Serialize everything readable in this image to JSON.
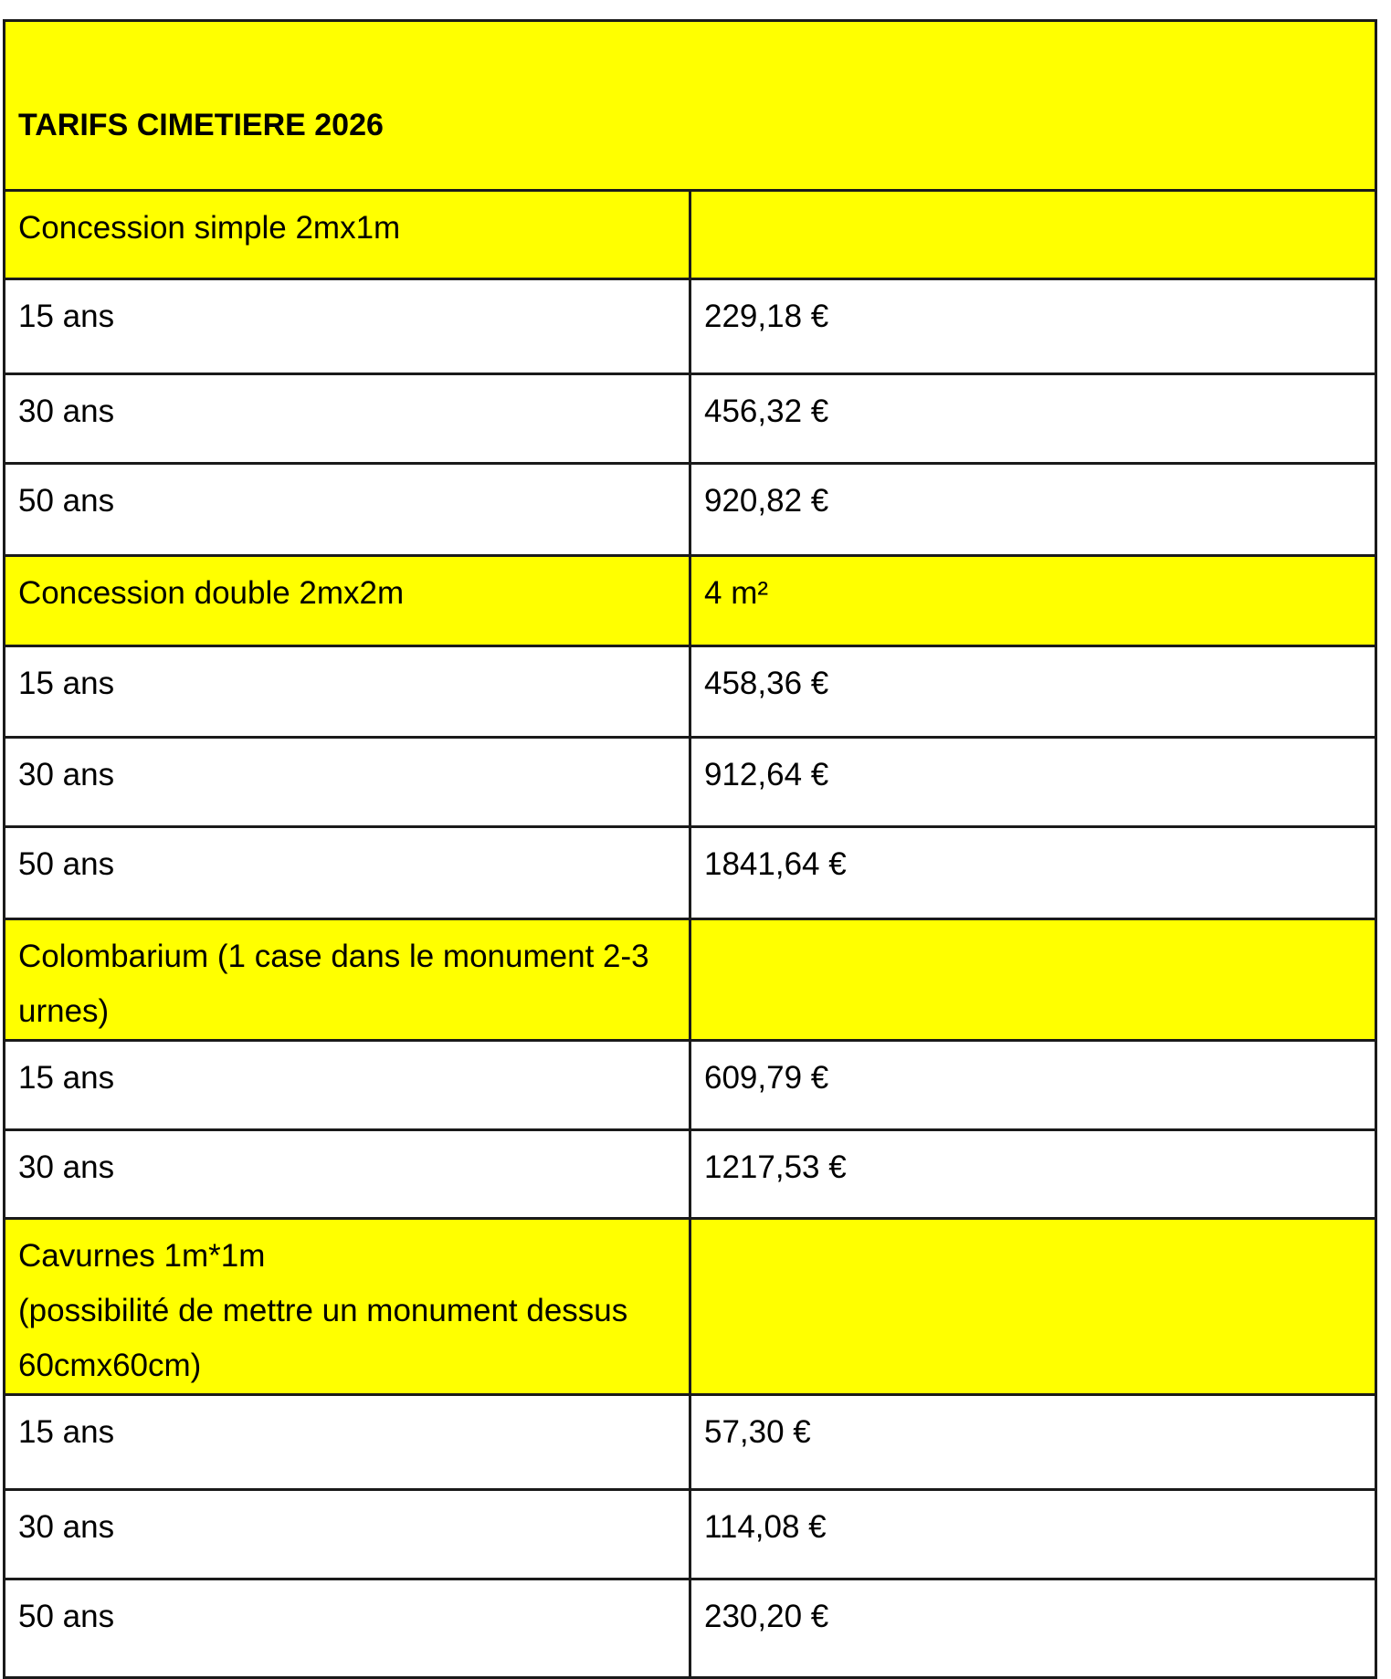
{
  "title": "TARIFS CIMETIERE 2026",
  "sections": [
    {
      "label": "Concession simple 2mx1m",
      "extra": "",
      "rows": [
        {
          "duration": "15 ans",
          "price": "229,18 €"
        },
        {
          "duration": "30 ans",
          "price": "456,32 €"
        },
        {
          "duration": "50 ans",
          "price": "920,82 €"
        }
      ]
    },
    {
      "label": "Concession double 2mx2m",
      "extra": "4 m²",
      "rows": [
        {
          "duration": "15 ans",
          "price": "458,36 €"
        },
        {
          "duration": "30 ans",
          "price": "912,64 €"
        },
        {
          "duration": "50 ans",
          "price": "1841,64 €"
        }
      ]
    },
    {
      "label": "Colombarium (1 case dans le monument 2-3 urnes)",
      "extra": "",
      "rows": [
        {
          "duration": "15 ans",
          "price": "609,79 €"
        },
        {
          "duration": "30 ans",
          "price": "1217,53 €"
        }
      ]
    },
    {
      "label": "Cavurnes 1m*1m\n(possibilité de mettre un monument dessus 60cmx60cm)",
      "extra": "",
      "rows": [
        {
          "duration": "15 ans",
          "price": "57,30 €"
        },
        {
          "duration": "30 ans",
          "price": "114,08 €"
        },
        {
          "duration": "50 ans",
          "price": "230,20 €"
        }
      ]
    }
  ],
  "colors": {
    "header_bg": "#ffff00",
    "border": "#1a1a1a"
  }
}
